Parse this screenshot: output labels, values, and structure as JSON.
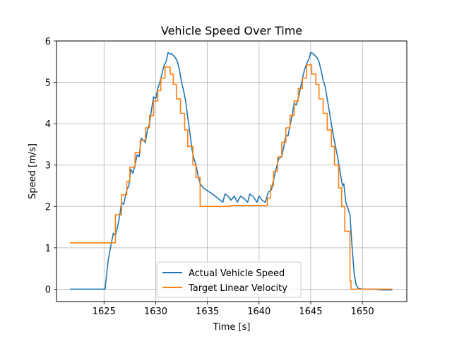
{
  "chart_data": {
    "type": "line",
    "title": "Vehicle Speed Over Time",
    "xlabel": "Time [s]",
    "ylabel": "Speed [m/s]",
    "xlim": [
      1620.4,
      1654.3
    ],
    "ylim": [
      -0.3,
      6.0
    ],
    "xticks": [
      1625,
      1630,
      1635,
      1640,
      1645,
      1650
    ],
    "yticks": [
      0,
      1,
      2,
      3,
      4,
      5,
      6
    ],
    "grid": true,
    "legend_position": "lower center",
    "series": [
      {
        "name": "Actual Vehicle Speed",
        "color": "#1f77b4",
        "points": [
          [
            1621.7,
            0.0
          ],
          [
            1625.1,
            0.0
          ],
          [
            1625.4,
            0.7
          ],
          [
            1625.7,
            1.1
          ],
          [
            1625.9,
            1.35
          ],
          [
            1626.1,
            1.3
          ],
          [
            1626.3,
            1.5
          ],
          [
            1626.5,
            1.75
          ],
          [
            1626.7,
            2.1
          ],
          [
            1626.9,
            2.05
          ],
          [
            1627.2,
            2.4
          ],
          [
            1627.4,
            2.5
          ],
          [
            1627.6,
            2.9
          ],
          [
            1627.8,
            2.8
          ],
          [
            1628.0,
            3.0
          ],
          [
            1628.2,
            3.25
          ],
          [
            1628.4,
            3.2
          ],
          [
            1628.6,
            3.65
          ],
          [
            1628.8,
            3.6
          ],
          [
            1629.0,
            3.55
          ],
          [
            1629.2,
            3.85
          ],
          [
            1629.4,
            4.0
          ],
          [
            1629.6,
            4.35
          ],
          [
            1629.8,
            4.65
          ],
          [
            1630.0,
            4.6
          ],
          [
            1630.2,
            4.85
          ],
          [
            1630.4,
            5.0
          ],
          [
            1630.6,
            5.2
          ],
          [
            1630.8,
            5.4
          ],
          [
            1631.0,
            5.5
          ],
          [
            1631.2,
            5.72
          ],
          [
            1631.4,
            5.68
          ],
          [
            1631.5,
            5.7
          ],
          [
            1631.7,
            5.65
          ],
          [
            1631.9,
            5.6
          ],
          [
            1632.1,
            5.5
          ],
          [
            1632.3,
            5.3
          ],
          [
            1632.5,
            5.0
          ],
          [
            1632.7,
            4.8
          ],
          [
            1632.9,
            4.55
          ],
          [
            1633.1,
            4.15
          ],
          [
            1633.3,
            3.8
          ],
          [
            1633.5,
            3.4
          ],
          [
            1633.7,
            3.15
          ],
          [
            1633.9,
            3.0
          ],
          [
            1634.1,
            2.75
          ],
          [
            1634.3,
            2.55
          ],
          [
            1634.6,
            2.45
          ],
          [
            1635.0,
            2.38
          ],
          [
            1635.5,
            2.3
          ],
          [
            1636.0,
            2.2
          ],
          [
            1636.5,
            2.1
          ],
          [
            1636.7,
            2.3
          ],
          [
            1637.0,
            2.25
          ],
          [
            1637.3,
            2.15
          ],
          [
            1637.6,
            2.25
          ],
          [
            1637.9,
            2.1
          ],
          [
            1638.2,
            2.25
          ],
          [
            1638.5,
            2.2
          ],
          [
            1638.9,
            2.1
          ],
          [
            1639.1,
            2.3
          ],
          [
            1639.4,
            2.25
          ],
          [
            1639.8,
            2.1
          ],
          [
            1640.0,
            2.25
          ],
          [
            1640.3,
            2.15
          ],
          [
            1640.6,
            2.1
          ],
          [
            1640.9,
            2.35
          ],
          [
            1641.2,
            2.4
          ],
          [
            1641.5,
            2.75
          ],
          [
            1641.7,
            2.95
          ],
          [
            1641.9,
            3.15
          ],
          [
            1642.2,
            3.2
          ],
          [
            1642.4,
            3.45
          ],
          [
            1642.6,
            3.72
          ],
          [
            1642.8,
            3.7
          ],
          [
            1643.0,
            3.95
          ],
          [
            1643.2,
            4.2
          ],
          [
            1643.4,
            4.5
          ],
          [
            1643.6,
            4.45
          ],
          [
            1643.8,
            4.6
          ],
          [
            1644.0,
            4.85
          ],
          [
            1644.2,
            5.1
          ],
          [
            1644.4,
            5.3
          ],
          [
            1644.6,
            5.45
          ],
          [
            1644.8,
            5.55
          ],
          [
            1645.0,
            5.72
          ],
          [
            1645.2,
            5.7
          ],
          [
            1645.4,
            5.65
          ],
          [
            1645.6,
            5.6
          ],
          [
            1645.8,
            5.5
          ],
          [
            1646.0,
            5.3
          ],
          [
            1646.2,
            5.05
          ],
          [
            1646.4,
            4.9
          ],
          [
            1646.6,
            4.6
          ],
          [
            1646.8,
            4.3
          ],
          [
            1647.0,
            4.0
          ],
          [
            1647.2,
            3.7
          ],
          [
            1647.4,
            3.45
          ],
          [
            1647.6,
            3.2
          ],
          [
            1647.8,
            2.9
          ],
          [
            1648.0,
            2.6
          ],
          [
            1648.1,
            2.5
          ],
          [
            1648.2,
            2.55
          ],
          [
            1648.4,
            2.1
          ],
          [
            1648.6,
            1.95
          ],
          [
            1648.8,
            1.8
          ],
          [
            1649.0,
            1.05
          ],
          [
            1649.2,
            0.4
          ],
          [
            1649.4,
            0.1
          ],
          [
            1649.6,
            0.02
          ],
          [
            1650.0,
            0.0
          ],
          [
            1651.0,
            0.0
          ],
          [
            1652.0,
            -0.02
          ],
          [
            1652.9,
            -0.02
          ]
        ]
      },
      {
        "name": "Target Linear Velocity",
        "color": "#ff7f0e",
        "points": [
          [
            1621.7,
            1.12
          ],
          [
            1626.1,
            1.12
          ],
          [
            1626.1,
            1.8
          ],
          [
            1626.7,
            1.8
          ],
          [
            1626.7,
            2.28
          ],
          [
            1627.2,
            2.28
          ],
          [
            1627.2,
            2.6
          ],
          [
            1627.5,
            2.6
          ],
          [
            1627.5,
            2.95
          ],
          [
            1628.0,
            2.95
          ],
          [
            1628.0,
            3.3
          ],
          [
            1628.5,
            3.3
          ],
          [
            1628.5,
            3.6
          ],
          [
            1629.0,
            3.6
          ],
          [
            1629.0,
            3.9
          ],
          [
            1629.4,
            3.9
          ],
          [
            1629.4,
            4.2
          ],
          [
            1629.8,
            4.2
          ],
          [
            1629.8,
            4.55
          ],
          [
            1630.2,
            4.55
          ],
          [
            1630.2,
            4.8
          ],
          [
            1630.5,
            4.8
          ],
          [
            1630.5,
            5.1
          ],
          [
            1630.9,
            5.1
          ],
          [
            1630.9,
            5.37
          ],
          [
            1631.4,
            5.37
          ],
          [
            1631.4,
            5.2
          ],
          [
            1631.7,
            5.2
          ],
          [
            1631.7,
            4.95
          ],
          [
            1632.0,
            4.95
          ],
          [
            1632.0,
            4.6
          ],
          [
            1632.4,
            4.6
          ],
          [
            1632.4,
            4.25
          ],
          [
            1632.8,
            4.25
          ],
          [
            1632.8,
            3.85
          ],
          [
            1633.1,
            3.85
          ],
          [
            1633.1,
            3.45
          ],
          [
            1633.6,
            3.45
          ],
          [
            1633.6,
            3.0
          ],
          [
            1633.9,
            3.0
          ],
          [
            1633.9,
            2.7
          ],
          [
            1634.3,
            2.7
          ],
          [
            1634.3,
            2.0
          ],
          [
            1637.2,
            2.0
          ],
          [
            1637.2,
            2.02
          ],
          [
            1640.8,
            2.02
          ],
          [
            1640.8,
            2.2
          ],
          [
            1641.1,
            2.2
          ],
          [
            1641.1,
            2.5
          ],
          [
            1641.4,
            2.5
          ],
          [
            1641.4,
            2.85
          ],
          [
            1641.8,
            2.85
          ],
          [
            1641.8,
            3.2
          ],
          [
            1642.2,
            3.2
          ],
          [
            1642.2,
            3.55
          ],
          [
            1642.6,
            3.55
          ],
          [
            1642.6,
            3.9
          ],
          [
            1643.0,
            3.9
          ],
          [
            1643.0,
            4.2
          ],
          [
            1643.4,
            4.2
          ],
          [
            1643.4,
            4.55
          ],
          [
            1643.8,
            4.55
          ],
          [
            1643.8,
            4.85
          ],
          [
            1644.2,
            4.85
          ],
          [
            1644.2,
            5.1
          ],
          [
            1644.6,
            5.1
          ],
          [
            1644.6,
            5.42
          ],
          [
            1645.1,
            5.42
          ],
          [
            1645.1,
            5.2
          ],
          [
            1645.5,
            5.2
          ],
          [
            1645.5,
            4.95
          ],
          [
            1645.8,
            4.95
          ],
          [
            1645.8,
            4.6
          ],
          [
            1646.2,
            4.6
          ],
          [
            1646.2,
            4.25
          ],
          [
            1646.6,
            4.25
          ],
          [
            1646.6,
            3.85
          ],
          [
            1647.0,
            3.85
          ],
          [
            1647.0,
            3.45
          ],
          [
            1647.3,
            3.45
          ],
          [
            1647.3,
            3.0
          ],
          [
            1647.7,
            3.0
          ],
          [
            1647.7,
            2.45
          ],
          [
            1648.0,
            2.45
          ],
          [
            1648.0,
            2.0
          ],
          [
            1648.3,
            2.0
          ],
          [
            1648.3,
            1.4
          ],
          [
            1648.8,
            1.4
          ],
          [
            1648.8,
            0.2
          ],
          [
            1648.9,
            0.2
          ],
          [
            1648.9,
            0.0
          ],
          [
            1652.9,
            0.0
          ]
        ]
      }
    ]
  }
}
